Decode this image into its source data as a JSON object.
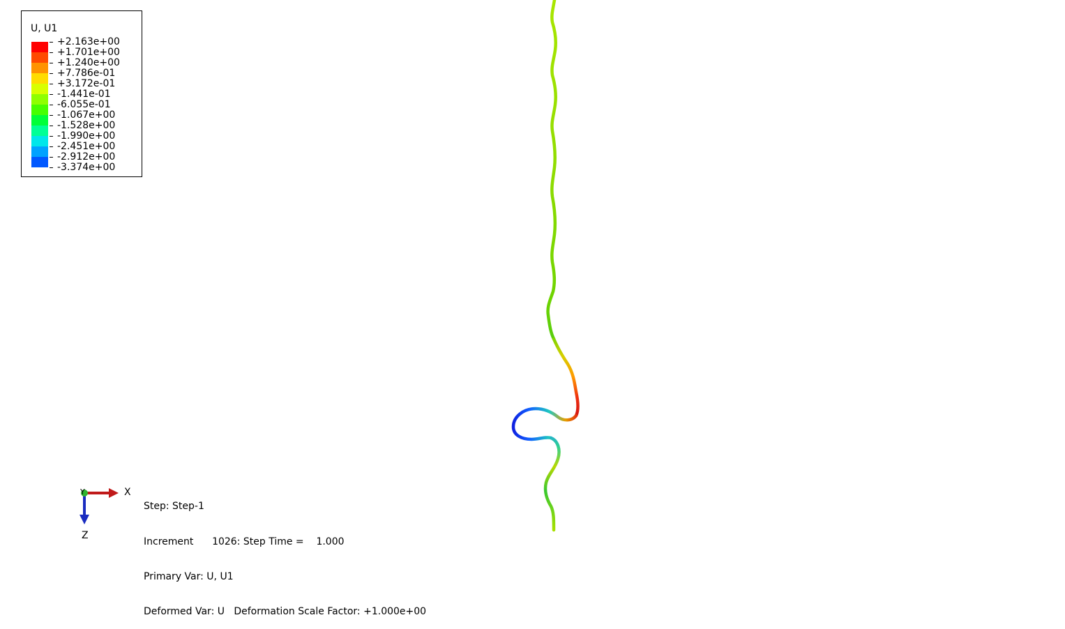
{
  "legend": {
    "title": "U, U1",
    "colors": [
      "#ff0000",
      "#ff4a00",
      "#ff9300",
      "#ffdc00",
      "#d9ff00",
      "#8fff00",
      "#46ff00",
      "#00ff38",
      "#00ff95",
      "#00e6ea",
      "#00a2ff",
      "#0058ff",
      "#0000ff"
    ],
    "labels": [
      "+2.163e+00",
      "+1.701e+00",
      "+1.240e+00",
      "+7.786e-01",
      "+3.172e-01",
      "-1.441e-01",
      "-6.055e-01",
      "-1.067e+00",
      "-1.528e+00",
      "-1.990e+00",
      "-2.451e+00",
      "-2.912e+00",
      "-3.374e+00"
    ]
  },
  "triad": {
    "x_label": "X",
    "y_label": "Y",
    "z_label": "Z",
    "x_color": "#c01a1a",
    "y_color": "#2fb52f",
    "z_color": "#1a2cc0"
  },
  "status": {
    "step": "Step: Step-1",
    "increment": "Increment      1026: Step Time =    1.000",
    "primary_var": "Primary Var: U, U1",
    "deformed_var": "Deformed Var: U   Deformation Scale Factor: +1.000e+00"
  }
}
